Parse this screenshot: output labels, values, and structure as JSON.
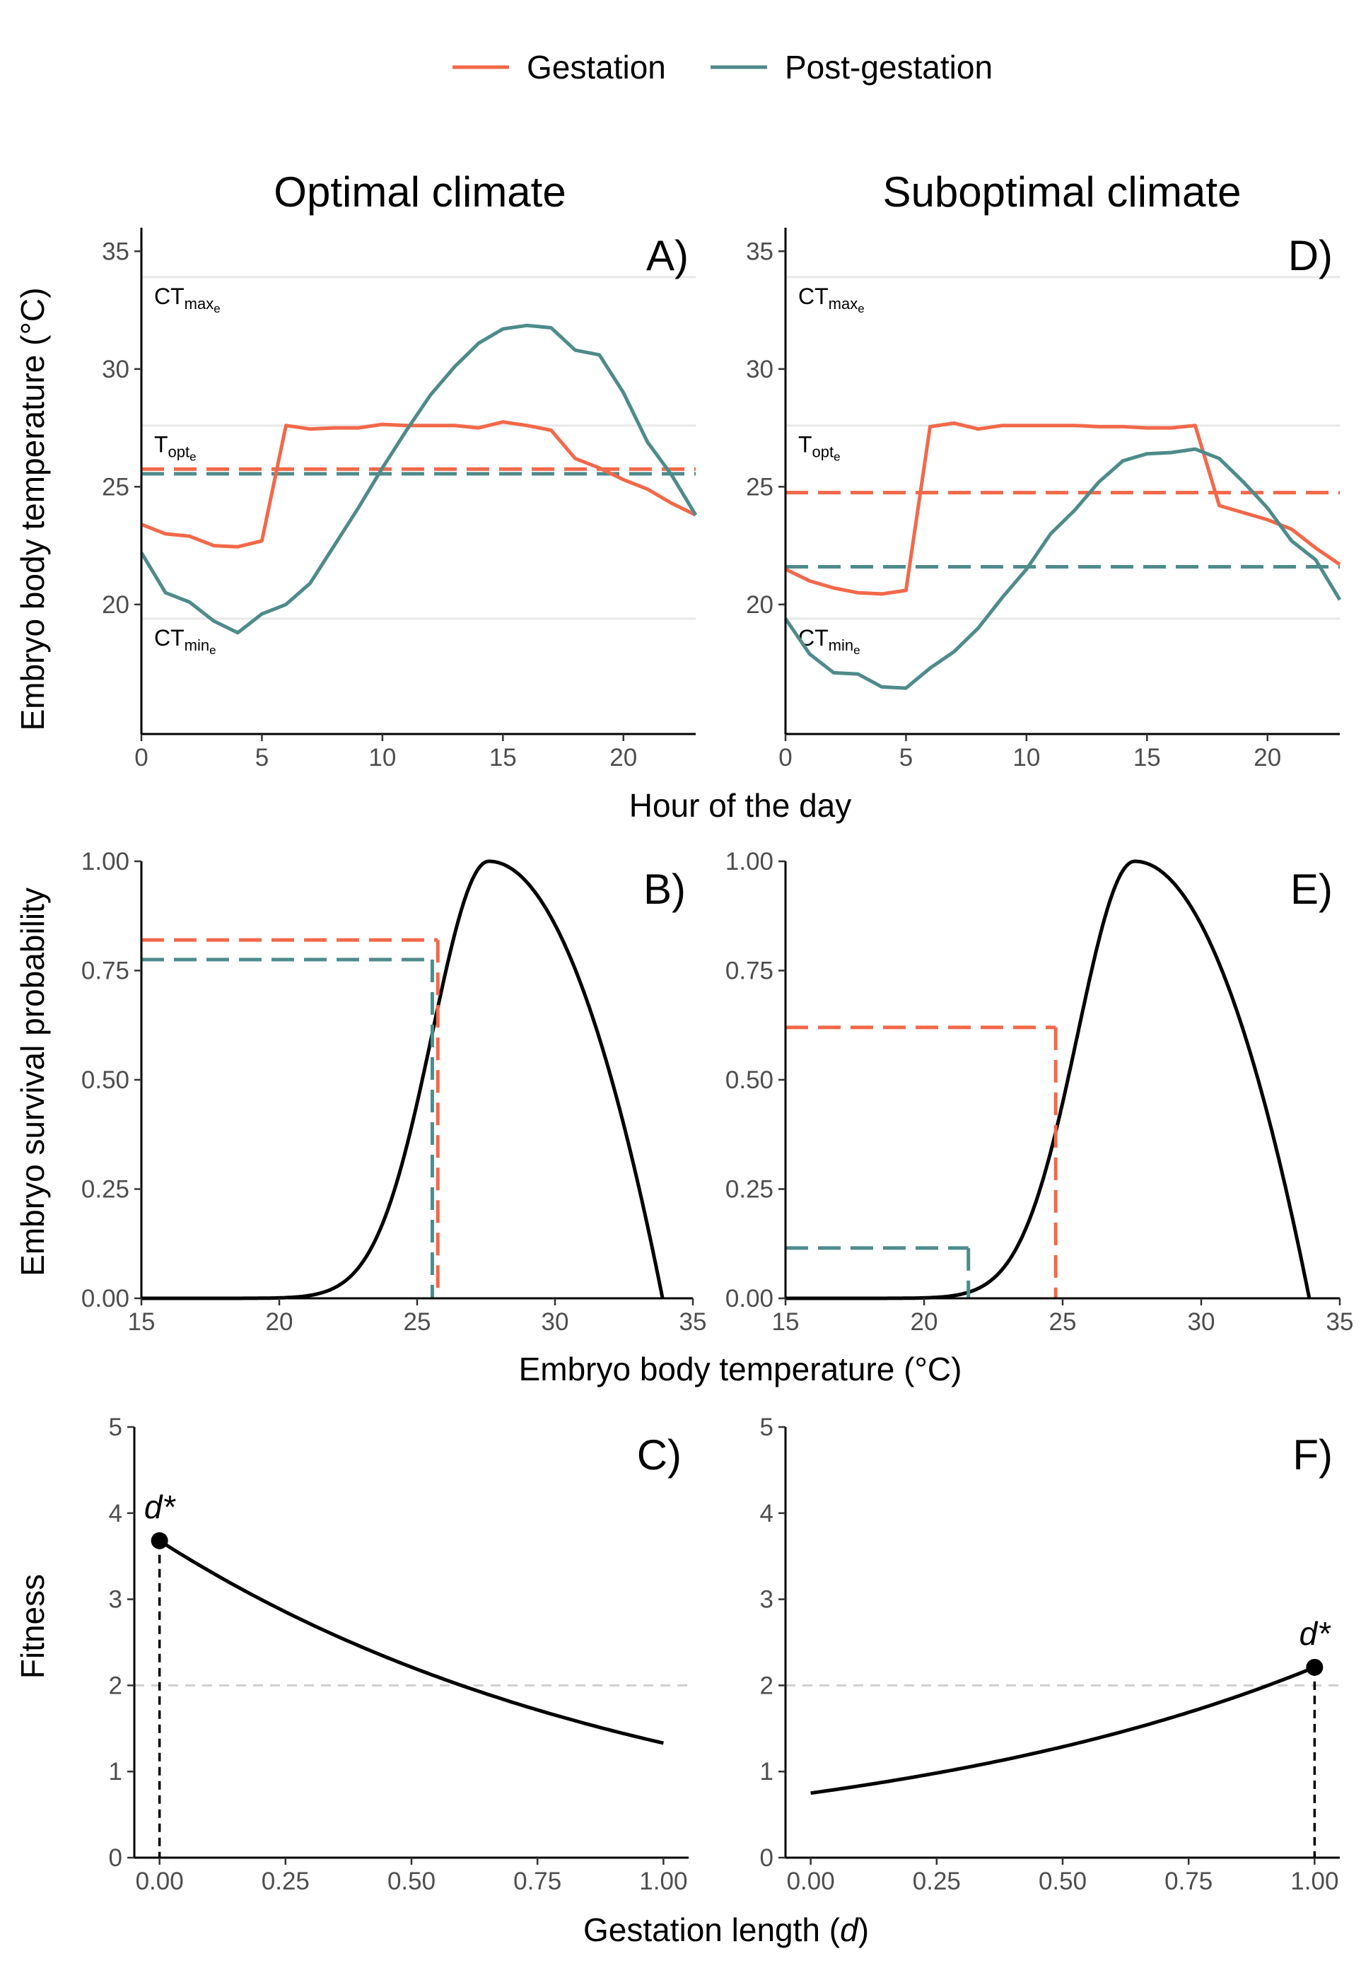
{
  "legend": {
    "items": [
      {
        "label": "Gestation",
        "color": "#F26849"
      },
      {
        "label": "Post-gestation",
        "color": "#4E8B8B"
      }
    ]
  },
  "columns": {
    "left_title": "Optimal climate",
    "right_title": "Suboptimal climate"
  },
  "axis_titles": {
    "temp_y": "Embryo body temperature (°C)",
    "hour_x": "Hour of the day",
    "survival_y": "Embryo survival probability",
    "survival_x": "Embryo body temperature (°C)",
    "fitness_y": "Fitness",
    "fitness_x_main": "Gestation length (",
    "fitness_x_var": "d",
    "fitness_x_end": ")"
  },
  "colors": {
    "gestation": "#F26849",
    "post_gestation": "#4E8B8B",
    "curve": "#000000",
    "reference_line": "#E8E8E8",
    "dashed_grey": "#CFCFCF"
  },
  "ref_labels": {
    "ctmax_main": "CT",
    "ctmax_sub": "max",
    "ctmax_subsub": "e",
    "topt_main": "T",
    "topt_sub": "opt",
    "topt_subsub": "e",
    "ctmin_main": "CT",
    "ctmin_sub": "min",
    "ctmin_subsub": "e"
  },
  "chart_data": [
    {
      "panel": "A)",
      "type": "line",
      "x_label": "Hour of the day",
      "y_label": "Embryo body temperature (°C)",
      "xlim": [
        0,
        23
      ],
      "ylim": [
        14.5,
        36
      ],
      "x_ticks": [
        0,
        5,
        10,
        15,
        20
      ],
      "y_ticks": [
        20,
        25,
        30,
        35
      ],
      "reference_lines": {
        "CTmax_e": 33.9,
        "Topt_e": 27.6,
        "CTmin_e": 19.4
      },
      "x": [
        0,
        1,
        2,
        3,
        4,
        5,
        6,
        7,
        8,
        9,
        10,
        11,
        12,
        13,
        14,
        15,
        16,
        17,
        18,
        19,
        20,
        21,
        22,
        23
      ],
      "series": [
        {
          "name": "Gestation",
          "values": [
            23.4,
            23.0,
            22.9,
            22.5,
            22.45,
            22.7,
            27.6,
            27.45,
            27.5,
            27.5,
            27.65,
            27.6,
            27.6,
            27.6,
            27.5,
            27.75,
            27.6,
            27.4,
            26.2,
            25.8,
            25.3,
            24.9,
            24.3,
            23.8
          ],
          "mean": 25.75
        },
        {
          "name": "Post-gestation",
          "values": [
            22.2,
            20.5,
            20.1,
            19.3,
            18.8,
            19.6,
            20.0,
            20.9,
            22.5,
            24.1,
            25.8,
            27.4,
            28.9,
            30.1,
            31.1,
            31.7,
            31.85,
            31.75,
            30.8,
            30.6,
            29.0,
            26.9,
            25.5,
            23.8
          ],
          "mean": 25.55
        }
      ]
    },
    {
      "panel": "D)",
      "type": "line",
      "x_label": "Hour of the day",
      "y_label": "Embryo body temperature (°C)",
      "xlim": [
        0,
        23
      ],
      "ylim": [
        14.5,
        36
      ],
      "x_ticks": [
        0,
        5,
        10,
        15,
        20
      ],
      "y_ticks": [
        20,
        25,
        30,
        35
      ],
      "reference_lines": {
        "CTmax_e": 33.9,
        "Topt_e": 27.6,
        "CTmin_e": 19.4
      },
      "x": [
        0,
        1,
        2,
        3,
        4,
        5,
        6,
        7,
        8,
        9,
        10,
        11,
        12,
        13,
        14,
        15,
        16,
        17,
        18,
        19,
        20,
        21,
        22,
        23
      ],
      "series": [
        {
          "name": "Gestation",
          "values": [
            21.5,
            21.0,
            20.7,
            20.5,
            20.45,
            20.6,
            27.55,
            27.7,
            27.45,
            27.6,
            27.6,
            27.6,
            27.6,
            27.55,
            27.55,
            27.5,
            27.5,
            27.6,
            24.2,
            23.9,
            23.6,
            23.2,
            22.4,
            21.7
          ],
          "mean": 24.75
        },
        {
          "name": "Post-gestation",
          "values": [
            19.4,
            17.9,
            17.1,
            17.05,
            16.5,
            16.45,
            17.3,
            18.0,
            19.0,
            20.3,
            21.5,
            23.0,
            24.0,
            25.2,
            26.1,
            26.4,
            26.45,
            26.6,
            26.2,
            25.2,
            24.1,
            22.7,
            21.9,
            20.2
          ],
          "mean": 21.6
        }
      ]
    },
    {
      "panel": "B)",
      "type": "line",
      "x_label": "Embryo body temperature (°C)",
      "y_label": "Embryo survival probability",
      "xlim": [
        15,
        35
      ],
      "ylim": [
        0,
        1
      ],
      "x_ticks": [
        15,
        20,
        25,
        30,
        35
      ],
      "y_ticks": [
        0.0,
        0.25,
        0.5,
        0.75,
        1.0
      ],
      "x_tick_labels": [
        "15",
        "20",
        "25",
        "30",
        "35"
      ],
      "y_tick_labels": [
        "0.00",
        "0.25",
        "0.50",
        "0.75",
        "1.00"
      ],
      "curve": {
        "Topt": 27.6,
        "CTmax": 33.9,
        "sigma": 2.9
      },
      "markers": [
        {
          "name": "Gestation",
          "temperature": 25.75,
          "survival": 0.82
        },
        {
          "name": "Post-gestation",
          "temperature": 25.55,
          "survival": 0.775
        }
      ]
    },
    {
      "panel": "E)",
      "type": "line",
      "x_label": "Embryo body temperature (°C)",
      "y_label": "Embryo survival probability",
      "xlim": [
        15,
        35
      ],
      "ylim": [
        0,
        1
      ],
      "x_ticks": [
        15,
        20,
        25,
        30,
        35
      ],
      "y_ticks": [
        0.0,
        0.25,
        0.5,
        0.75,
        1.0
      ],
      "x_tick_labels": [
        "15",
        "20",
        "25",
        "30",
        "35"
      ],
      "y_tick_labels": [
        "0.00",
        "0.25",
        "0.50",
        "0.75",
        "1.00"
      ],
      "curve": {
        "Topt": 27.6,
        "CTmax": 33.9,
        "sigma": 2.9
      },
      "markers": [
        {
          "name": "Gestation",
          "temperature": 24.75,
          "survival": 0.62
        },
        {
          "name": "Post-gestation",
          "temperature": 21.6,
          "survival": 0.115
        }
      ]
    },
    {
      "panel": "C)",
      "type": "line",
      "x_label": "Gestation length (d)",
      "y_label": "Fitness",
      "xlim": [
        -0.05,
        1.05
      ],
      "ylim": [
        0,
        5
      ],
      "x_ticks": [
        0,
        0.25,
        0.5,
        0.75,
        1.0
      ],
      "y_ticks": [
        0,
        1,
        2,
        3,
        4,
        5
      ],
      "x_tick_labels": [
        "0.00",
        "0.25",
        "0.50",
        "0.75",
        "1.00"
      ],
      "y_tick_labels": [
        "0",
        "1",
        "2",
        "3",
        "4",
        "5"
      ],
      "reference_y": 2,
      "curve": {
        "start": 3.68,
        "end": 1.33
      },
      "optimum": {
        "label": "d*",
        "d": 0.0,
        "fitness": 3.68
      }
    },
    {
      "panel": "F)",
      "type": "line",
      "x_label": "Gestation length (d)",
      "y_label": "Fitness",
      "xlim": [
        -0.05,
        1.05
      ],
      "ylim": [
        0,
        5
      ],
      "x_ticks": [
        0,
        0.25,
        0.5,
        0.75,
        1.0
      ],
      "y_ticks": [
        0,
        1,
        2,
        3,
        4,
        5
      ],
      "x_tick_labels": [
        "0.00",
        "0.25",
        "0.50",
        "0.75",
        "1.00"
      ],
      "y_tick_labels": [
        "0",
        "1",
        "2",
        "3",
        "4",
        "5"
      ],
      "reference_y": 2,
      "curve": {
        "start": 0.75,
        "end": 2.21
      },
      "optimum": {
        "label": "d*",
        "d": 1.0,
        "fitness": 2.21
      }
    }
  ]
}
